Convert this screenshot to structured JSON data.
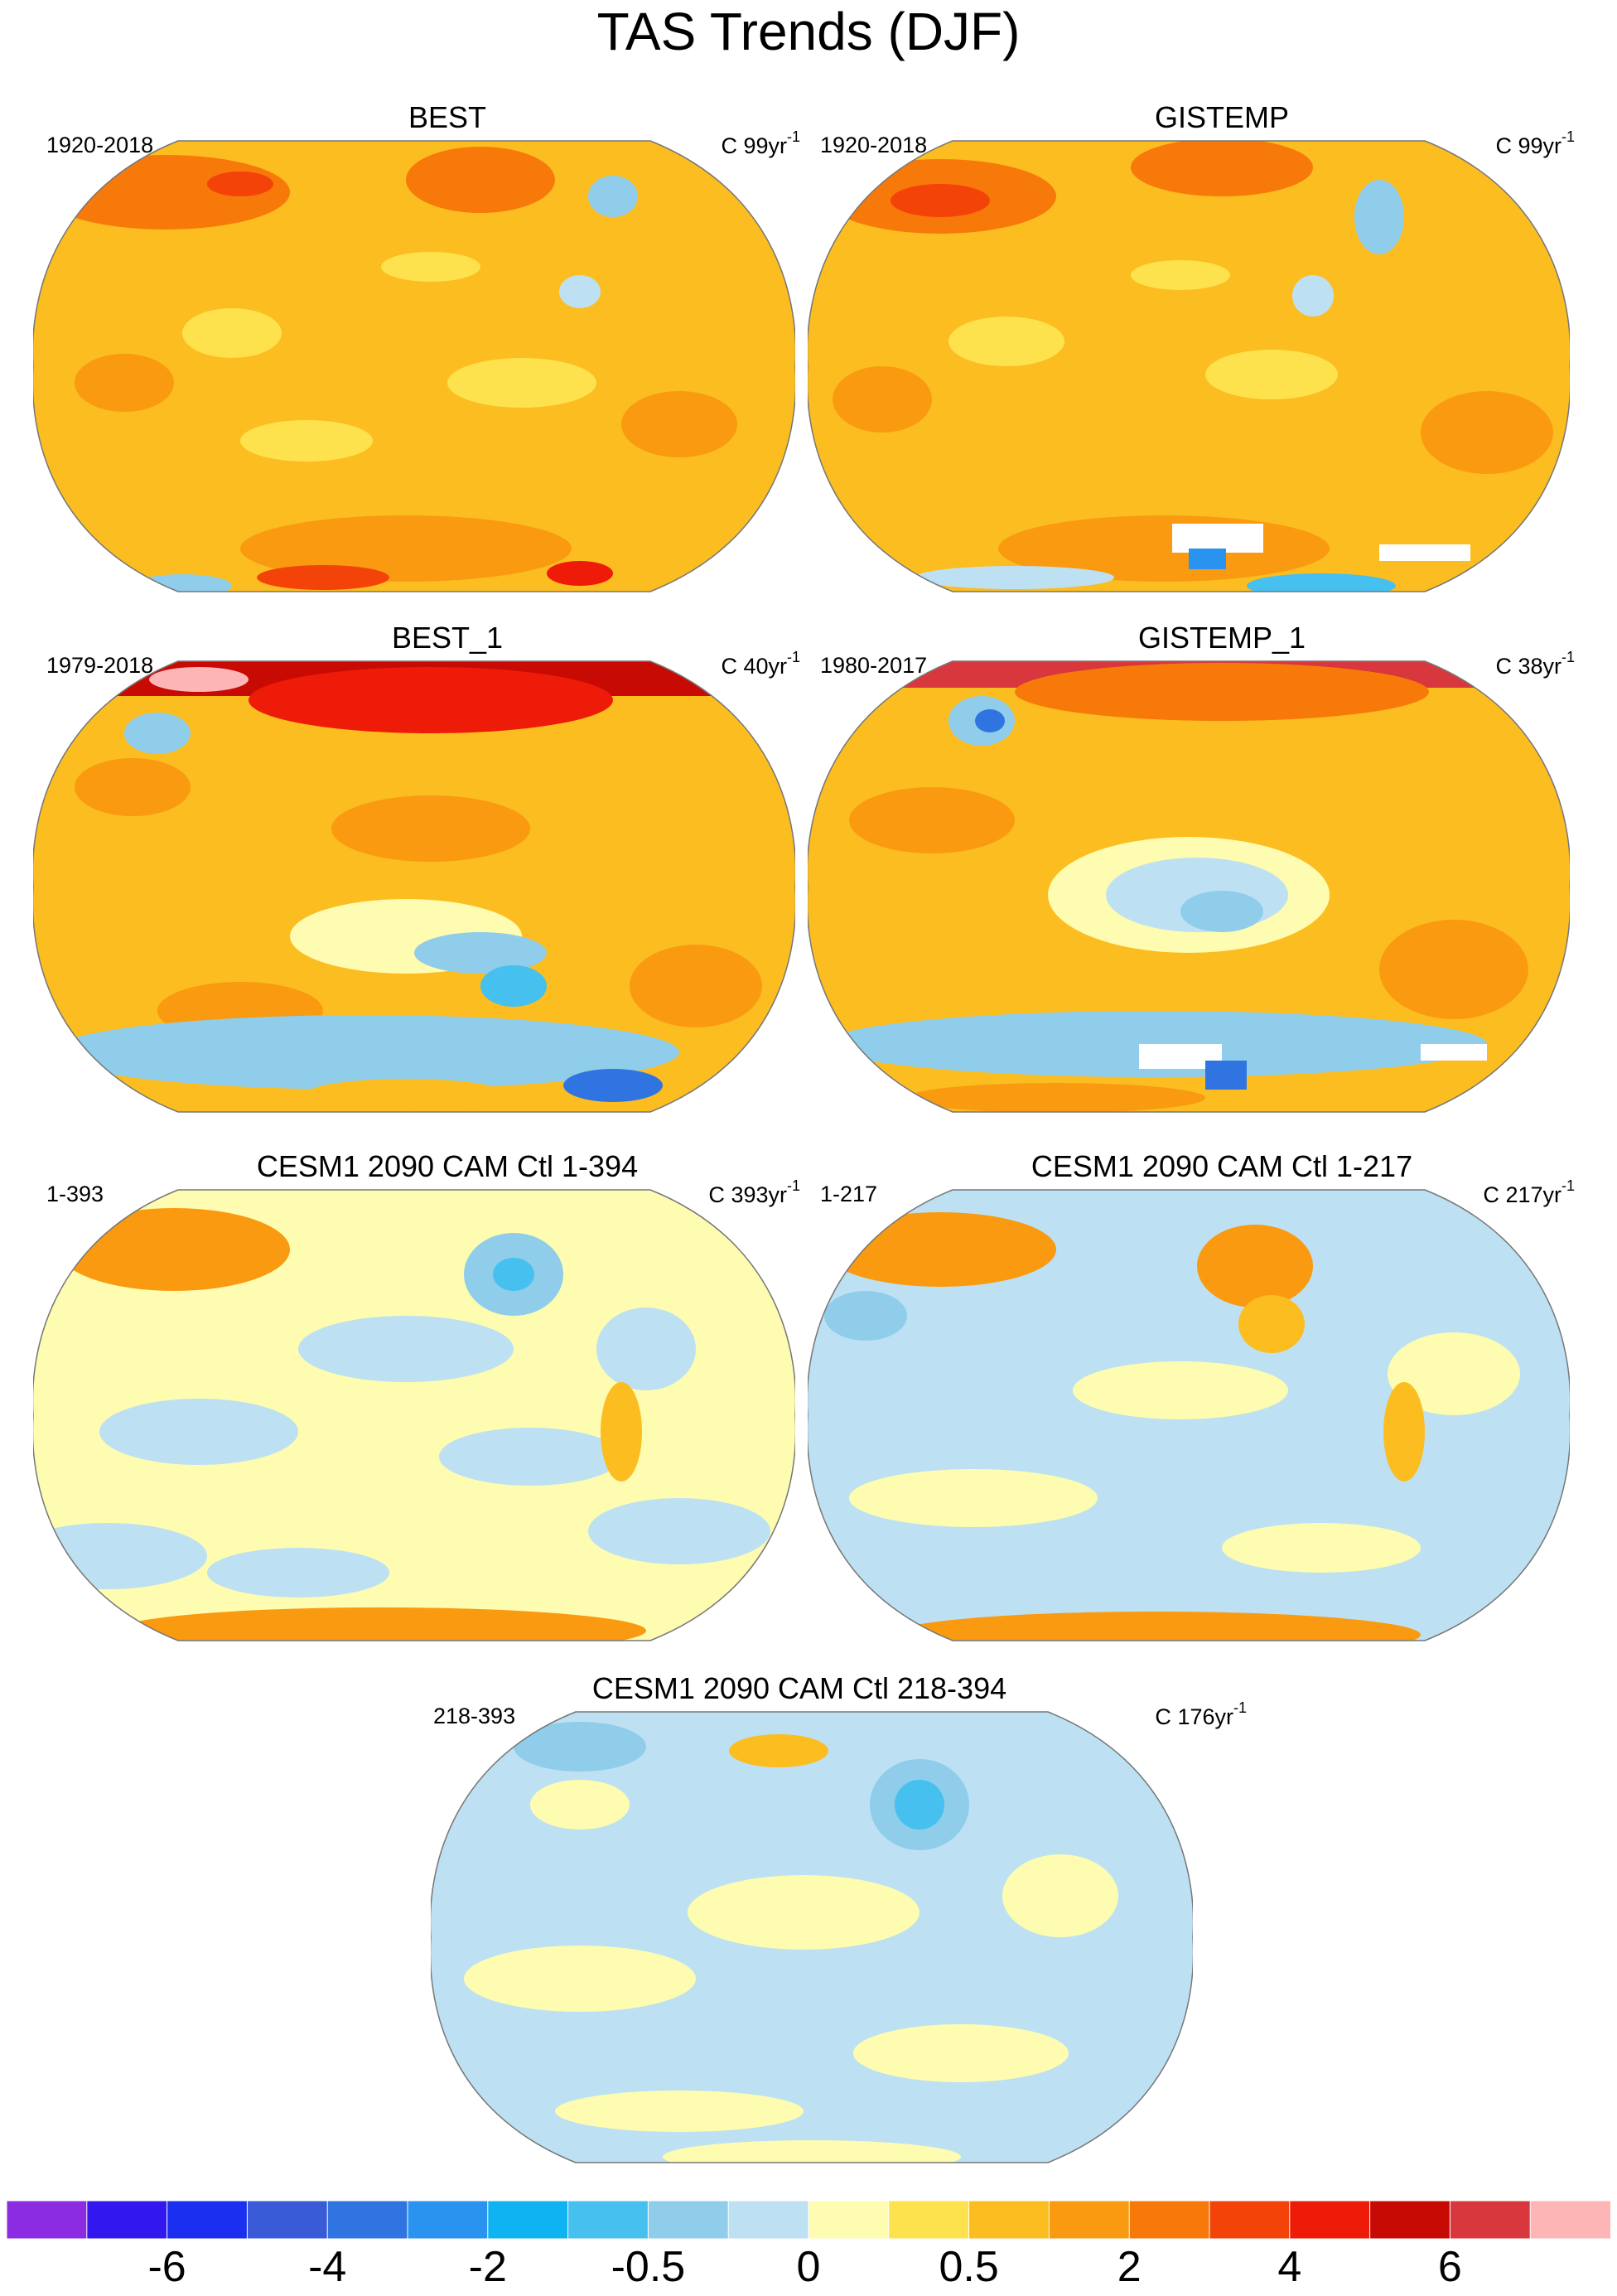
{
  "figure": {
    "title": "TAS Trends (DJF)"
  },
  "panels": [
    {
      "title": "BEST",
      "period": "1920-2018",
      "units_prefix": "C",
      "units_num": "99yr",
      "units_exp": "-1"
    },
    {
      "title": "GISTEMP",
      "period": "1920-2018",
      "units_prefix": "C",
      "units_num": "99yr",
      "units_exp": "-1"
    },
    {
      "title": "BEST_1",
      "period": "1979-2018",
      "units_prefix": "C",
      "units_num": "40yr",
      "units_exp": "-1"
    },
    {
      "title": "GISTEMP_1",
      "period": "1980-2017",
      "units_prefix": "C",
      "units_num": "38yr",
      "units_exp": "-1"
    },
    {
      "title": "CESM1 2090 CAM Ctl 1-394",
      "period": "1-393",
      "units_prefix": "C",
      "units_num": "393yr",
      "units_exp": "-1"
    },
    {
      "title": "CESM1 2090 CAM Ctl 1-217",
      "period": "1-217",
      "units_prefix": "C",
      "units_num": "217yr",
      "units_exp": "-1"
    },
    {
      "title": "CESM1 2090 CAM Ctl 218-394",
      "period": "218-393",
      "units_prefix": "C",
      "units_num": "176yr",
      "units_exp": "-1"
    }
  ],
  "colorbar": {
    "colors": [
      "#8b2be2",
      "#3218ee",
      "#1a2ff0",
      "#3a5bd8",
      "#2f74e0",
      "#2a93ef",
      "#0fb3f2",
      "#45c0ef",
      "#8fcdeb",
      "#bde1f3",
      "#fefcb0",
      "#fde24e",
      "#fcbd20",
      "#f99a10",
      "#f7790a",
      "#f44309",
      "#ee1b08",
      "#c80a05",
      "#d8373d",
      "#feb5b5"
    ],
    "labels": [
      "-6",
      "-4",
      "-2",
      "-0.5",
      "0",
      "0.5",
      "2",
      "4",
      "6"
    ],
    "label_positions": [
      2,
      4,
      6,
      8,
      10,
      12,
      14,
      16,
      18
    ]
  }
}
